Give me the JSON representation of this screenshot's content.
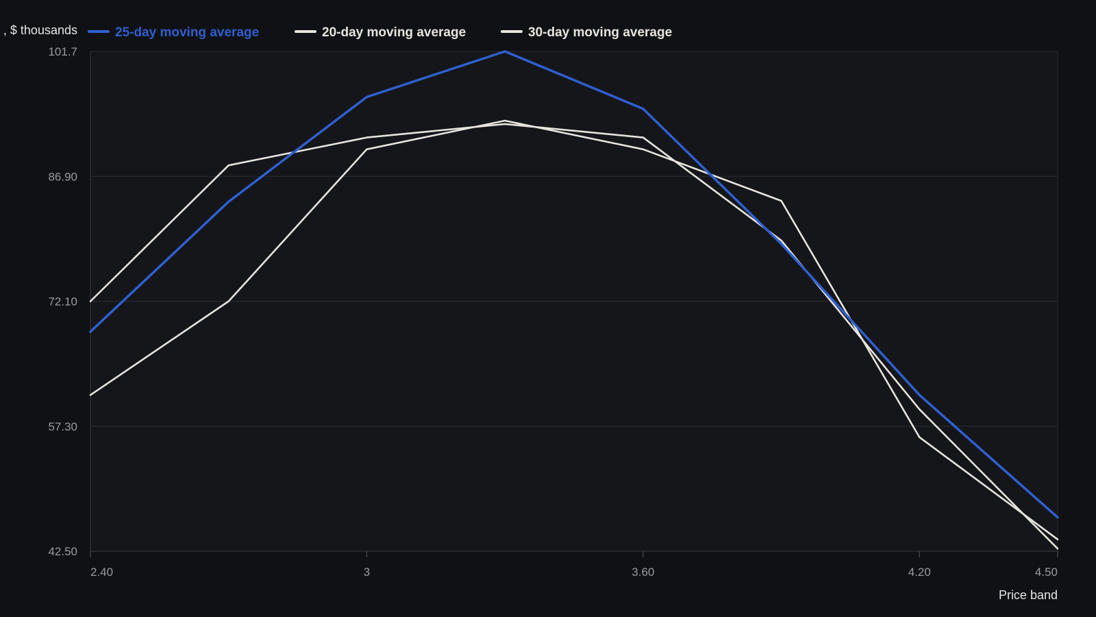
{
  "chart_data": {
    "type": "line",
    "title": "",
    "xlabel": "Price band",
    "ylabel": ", $ thousands",
    "xlim": [
      2.4,
      4.5
    ],
    "ylim": [
      42.5,
      101.7
    ],
    "x_ticks": [
      {
        "value": 2.4,
        "label": "2.40"
      },
      {
        "value": 3.0,
        "label": "3"
      },
      {
        "value": 3.6,
        "label": "3.60"
      },
      {
        "value": 4.2,
        "label": "4.20"
      },
      {
        "value": 4.5,
        "label": "4.50"
      }
    ],
    "y_ticks": [
      {
        "value": 42.5,
        "label": "42.50"
      },
      {
        "value": 57.3,
        "label": "57.30"
      },
      {
        "value": 72.1,
        "label": "72.10"
      },
      {
        "value": 86.9,
        "label": "86.90"
      },
      {
        "value": 101.7,
        "label": "101.7"
      }
    ],
    "grid": true,
    "legend": "top-left",
    "x": [
      2.4,
      2.7,
      3.0,
      3.3,
      3.6,
      3.9,
      4.2,
      4.5
    ],
    "series": [
      {
        "name": "25-day moving average",
        "color": "#2f5fd0",
        "values": [
          68.5,
          83.9,
          96.3,
          101.7,
          94.9,
          78.9,
          61.0,
          46.5
        ]
      },
      {
        "name": "20-day moving average",
        "color": "#e6e4de",
        "values": [
          72.1,
          88.2,
          91.5,
          93.1,
          91.5,
          79.3,
          59.3,
          42.8
        ]
      },
      {
        "name": "30-day moving average",
        "color": "#e6e4de",
        "values": [
          61.0,
          72.1,
          90.1,
          93.5,
          90.1,
          84.0,
          56.0,
          43.9
        ]
      }
    ]
  }
}
